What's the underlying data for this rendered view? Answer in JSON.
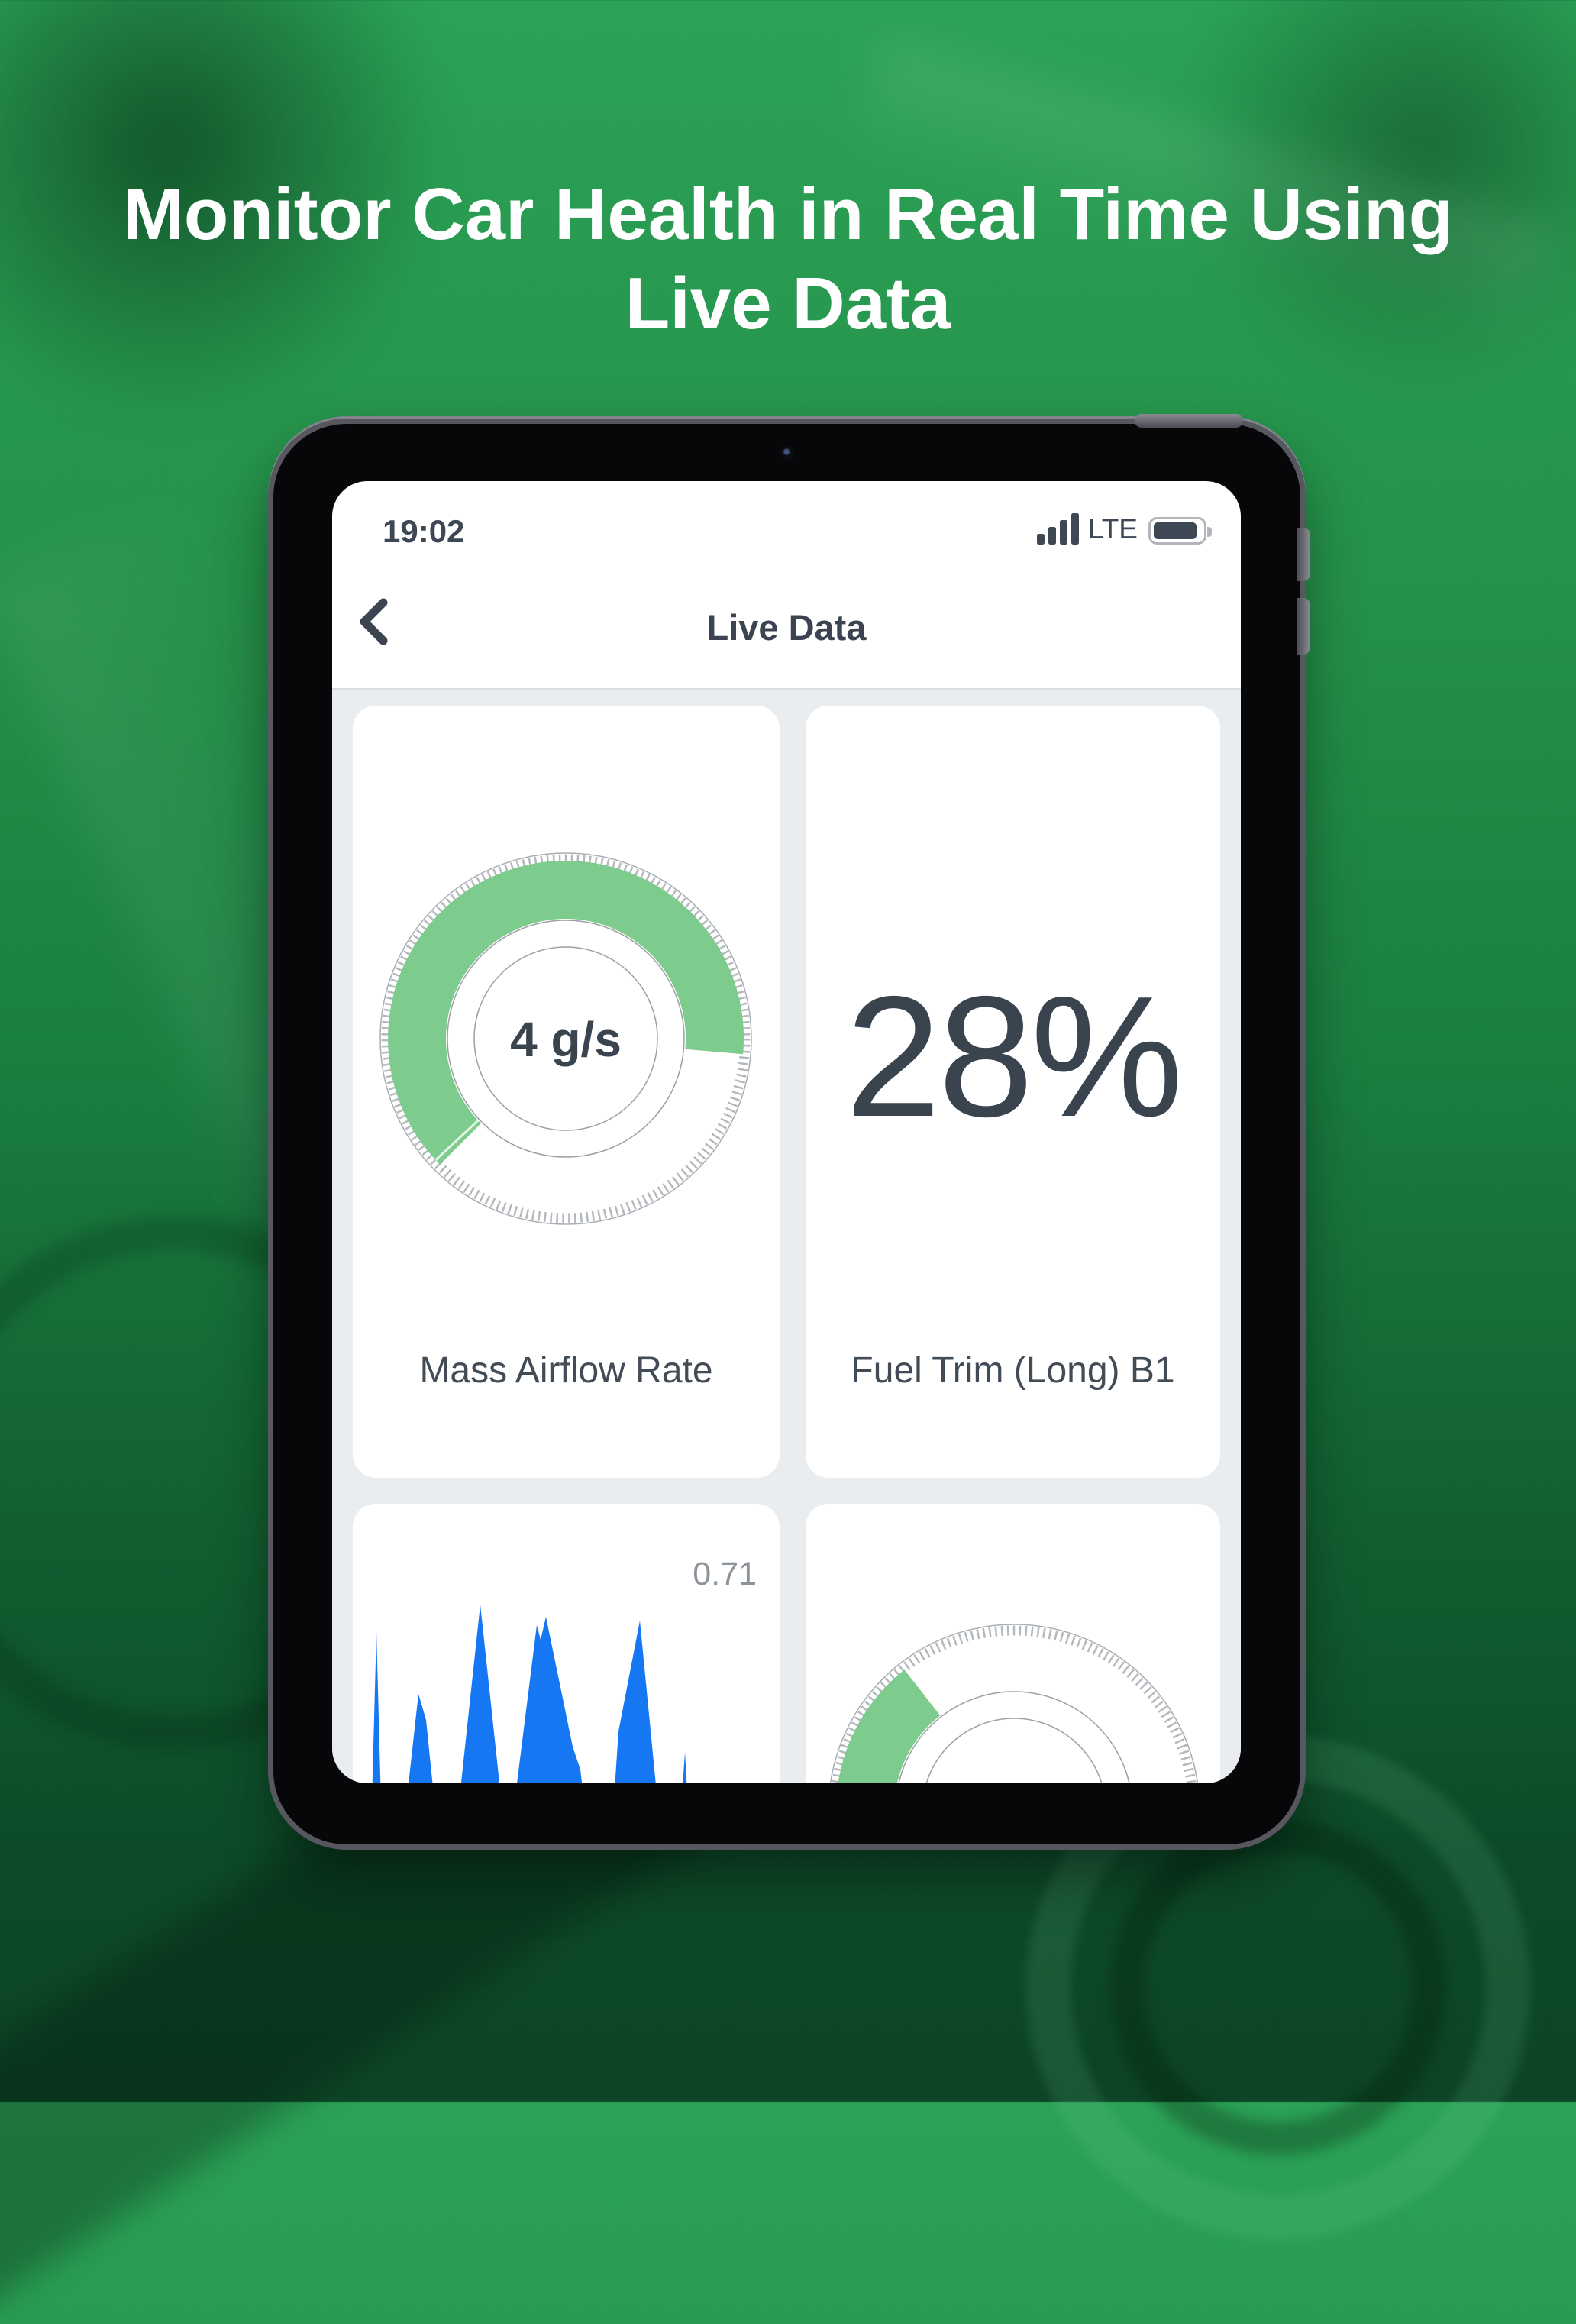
{
  "hero": {
    "title_line1": "Monitor Car Health in Real Time Using",
    "title_line2": "Live Data"
  },
  "status_bar": {
    "time": "19:02",
    "network": "LTE",
    "battery_level": "full",
    "signal_bars": 4
  },
  "nav": {
    "title": "Live Data",
    "back_icon": "chevron-left"
  },
  "colors": {
    "accent_green_arc": "#7ecb8e",
    "chart_blue": "#1577f2",
    "text_dark": "#3a444f",
    "text_gray": "#8d939b",
    "screen_bg": "#e9edf0",
    "hero_bg_green": "#1a7f41"
  },
  "chart_data": [
    {
      "id": "mass-airflow-gauge",
      "type": "gauge",
      "title": "Mass Airflow Rate",
      "value": 4,
      "unit": "g/s",
      "value_display": "4 g/s",
      "arc": {
        "start_deg": 225,
        "end_deg": 95,
        "radius": 195,
        "color": "#7ecb8e"
      },
      "tick_deg": 227,
      "legend_position": "center",
      "notes": "donut gauge, green arc sweeps clockwise from lower-left over the top to just past 3 o'clock"
    },
    {
      "id": "fuel-trim-long-b1",
      "type": "number",
      "title": "Fuel Trim (Long) B1",
      "value": 28,
      "unit": "%",
      "value_display": "28%"
    },
    {
      "id": "live-area-chart",
      "type": "area",
      "title": "",
      "current_value": 0.71,
      "current_value_display": "0.71",
      "color": "#1577f2",
      "ylim": [
        0,
        0.71
      ],
      "grid": false,
      "points": [
        [
          24,
          330
        ],
        [
          31,
          68
        ],
        [
          38,
          330
        ],
        [
          66,
          330
        ],
        [
          86,
          149
        ],
        [
          96,
          183
        ],
        [
          111,
          330
        ],
        [
          135,
          330
        ],
        [
          167,
          32
        ],
        [
          199,
          330
        ],
        [
          207,
          330
        ],
        [
          241,
          59
        ],
        [
          246,
          78
        ],
        [
          253,
          48
        ],
        [
          288,
          218
        ],
        [
          298,
          248
        ],
        [
          308,
          330
        ],
        [
          331,
          330
        ],
        [
          344,
          258
        ],
        [
          348,
          198
        ],
        [
          376,
          53
        ],
        [
          403,
          330
        ],
        [
          428,
          330
        ],
        [
          435,
          225
        ],
        [
          441,
          330
        ]
      ],
      "notes": "spiky blue area chart, bottom clipped by tablet bezel"
    },
    {
      "id": "partial-gauge",
      "type": "gauge",
      "title": "",
      "value_display": "",
      "arc": {
        "start_deg": 240,
        "end_deg": 322,
        "radius": 195,
        "color": "#7ecb8e"
      },
      "tick_deg": 247,
      "notes": "only top of gauge visible, card clipped by tablet bezel"
    }
  ]
}
